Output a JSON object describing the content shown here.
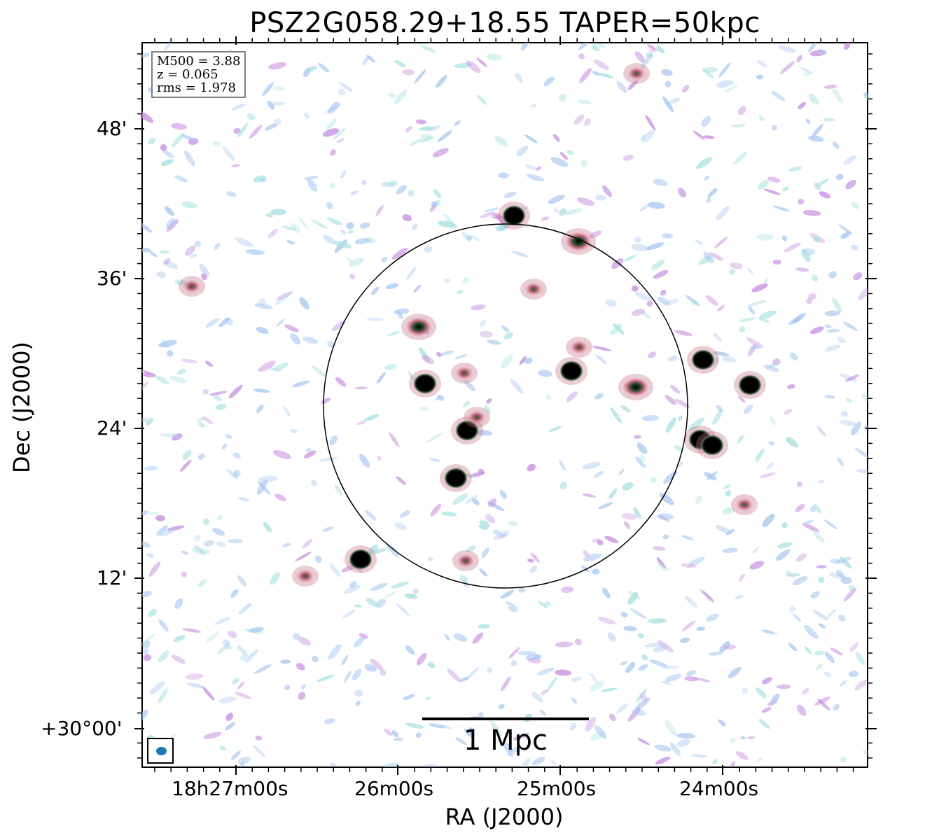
{
  "title": "PSZ2G058.29+18.55 TAPER=50kpc",
  "axes": {
    "xlabel": "RA (J2000)",
    "ylabel": "Dec (J2000)",
    "x_ticks": [
      "18h27m00s",
      "26m00s",
      "25m00s",
      "24m00s"
    ],
    "y_ticks": [
      "48'",
      "36'",
      "24'",
      "12'",
      "+30°00'"
    ]
  },
  "info": {
    "m500": "M500 = 3.88",
    "z": "z = 0.065",
    "rms": "rms = 1.978"
  },
  "scalebar": {
    "label": "1 Mpc"
  },
  "colors": {
    "circle": "#000000",
    "beam": "#1f77b4",
    "noise_light": "#a8c8f0",
    "noise_mid": "#c890e0",
    "noise_teal": "#a8e0e0",
    "source_core": "#000000",
    "source_ring": "#3a7a3a",
    "source_halo": "#c07080"
  },
  "sources": [
    {
      "ra": 734,
      "dec": 308,
      "strength": "strong"
    },
    {
      "ra": 826,
      "dec": 345,
      "strength": "medium"
    },
    {
      "ra": 598,
      "dec": 467,
      "strength": "medium"
    },
    {
      "ra": 762,
      "dec": 413,
      "strength": "weak"
    },
    {
      "ra": 607,
      "dec": 548,
      "strength": "strong"
    },
    {
      "ra": 816,
      "dec": 530,
      "strength": "strong"
    },
    {
      "ra": 908,
      "dec": 553,
      "strength": "medium"
    },
    {
      "ra": 1004,
      "dec": 514,
      "strength": "strong"
    },
    {
      "ra": 1071,
      "dec": 550,
      "strength": "strong"
    },
    {
      "ra": 667,
      "dec": 615,
      "strength": "strong"
    },
    {
      "ra": 651,
      "dec": 683,
      "strength": "strong"
    },
    {
      "ra": 1000,
      "dec": 628,
      "strength": "strong"
    },
    {
      "ra": 1017,
      "dec": 636,
      "strength": "strong"
    },
    {
      "ra": 515,
      "dec": 799,
      "strength": "strong"
    },
    {
      "ra": 274,
      "dec": 409,
      "strength": "weak"
    },
    {
      "ra": 909,
      "dec": 105,
      "strength": "weak"
    },
    {
      "ra": 436,
      "dec": 823,
      "strength": "weak"
    },
    {
      "ra": 1063,
      "dec": 721,
      "strength": "weak"
    },
    {
      "ra": 663,
      "dec": 533,
      "strength": "weak"
    },
    {
      "ra": 665,
      "dec": 801,
      "strength": "weak"
    },
    {
      "ra": 827,
      "dec": 496,
      "strength": "weak"
    },
    {
      "ra": 681,
      "dec": 596,
      "strength": "weak"
    }
  ]
}
